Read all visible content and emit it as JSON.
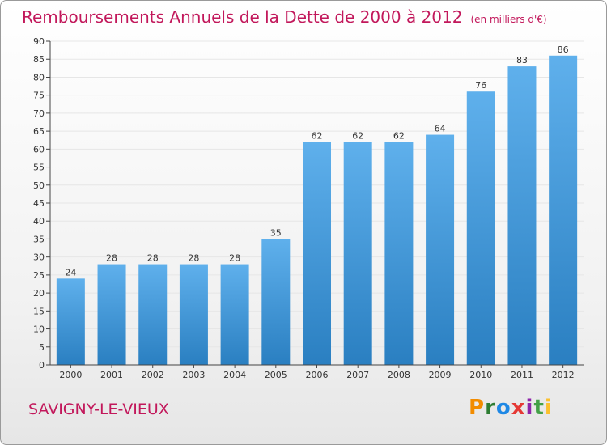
{
  "header": {
    "title": "Remboursements Annuels de la Dette de 2000 à 2012",
    "unit": "(en milliers d'€)"
  },
  "footer": {
    "town": "SAVIGNY-LE-VIEUX",
    "logo_letters": [
      "P",
      "r",
      "o",
      "x",
      "i",
      "t",
      "i"
    ],
    "logo_colors": [
      "#f28c00",
      "#2e7d32",
      "#1e88e5",
      "#e53935",
      "#8e24aa",
      "#43a047",
      "#fbc02d"
    ]
  },
  "colors": {
    "title": "#c2185b",
    "bar_top": "#5fb0ec",
    "bar_bottom": "#2a7fc1",
    "axis": "#444444",
    "grid": "#e6e6e6"
  },
  "chart_data": {
    "type": "bar",
    "categories": [
      "2000",
      "2001",
      "2002",
      "2003",
      "2004",
      "2005",
      "2006",
      "2007",
      "2008",
      "2009",
      "2010",
      "2011",
      "2012"
    ],
    "values": [
      24,
      28,
      28,
      28,
      28,
      35,
      62,
      62,
      62,
      64,
      76,
      83,
      86
    ],
    "title": "Remboursements Annuels de la Dette de 2000 à 2012",
    "xlabel": "",
    "ylabel": "",
    "ylim": [
      0,
      90
    ],
    "yticks": [
      0,
      5,
      10,
      15,
      20,
      25,
      30,
      35,
      40,
      45,
      50,
      55,
      60,
      65,
      70,
      75,
      80,
      85,
      90
    ],
    "grid": true,
    "legend": "none"
  }
}
